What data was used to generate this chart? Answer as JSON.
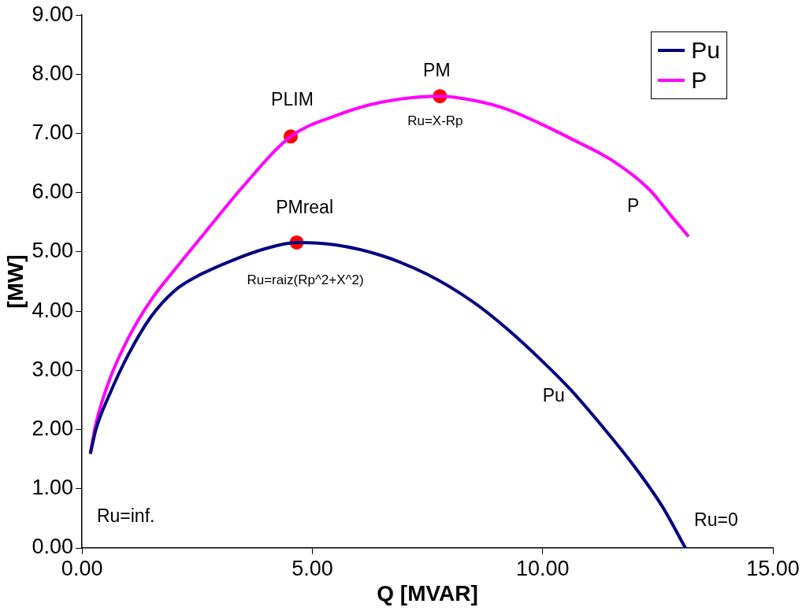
{
  "chart_data": {
    "type": "line",
    "xlabel": "Q [MVAR]",
    "ylabel": "[MW]",
    "xlim": [
      0,
      15
    ],
    "xticks": [
      {
        "value": 0,
        "label": "0.00"
      },
      {
        "value": 5,
        "label": "5.00"
      },
      {
        "value": 10,
        "label": "10.00"
      },
      {
        "value": 15,
        "label": "15.00"
      }
    ],
    "ylim": [
      0,
      9
    ],
    "yticks": [
      {
        "value": 0,
        "label": "0.00"
      },
      {
        "value": 1,
        "label": "1.00"
      },
      {
        "value": 2,
        "label": "2.00"
      },
      {
        "value": 3,
        "label": "3.00"
      },
      {
        "value": 4,
        "label": "4.00"
      },
      {
        "value": 5,
        "label": "5.00"
      },
      {
        "value": 6,
        "label": "6.00"
      },
      {
        "value": 7,
        "label": "7.00"
      },
      {
        "value": 8,
        "label": "8.00"
      },
      {
        "value": 9,
        "label": "9.00"
      }
    ],
    "grid": false,
    "legend": "top right",
    "marker": "none",
    "line_style": "solid",
    "series": [
      {
        "name": "Pu",
        "color": "#000080",
        "x": [
          0.18,
          0.3,
          0.6,
          1.0,
          1.5,
          2.0,
          2.5,
          3.3,
          4.0,
          4.66,
          5.5,
          6.5,
          7.5,
          8.5,
          9.23,
          10.0,
          10.6,
          11.3,
          11.97,
          12.6,
          13.1
        ],
        "values": [
          1.59,
          2.0,
          2.6,
          3.26,
          3.91,
          4.34,
          4.59,
          4.87,
          5.06,
          5.16,
          5.12,
          4.94,
          4.62,
          4.15,
          3.7,
          3.15,
          2.68,
          2.05,
          1.4,
          0.7,
          0
        ]
      },
      {
        "name": "P",
        "color": "#ff00ff",
        "x": [
          0.18,
          0.3,
          0.6,
          1.0,
          1.5,
          2.0,
          2.65,
          3.5,
          4.53,
          5.5,
          6.5,
          7.77,
          8.5,
          9.23,
          10.0,
          10.6,
          11.5,
          12.31,
          12.8,
          13.17
        ],
        "values": [
          1.6,
          2.1,
          2.85,
          3.54,
          4.19,
          4.69,
          5.31,
          6.11,
          6.95,
          7.3,
          7.53,
          7.63,
          7.56,
          7.41,
          7.15,
          6.92,
          6.55,
          6.06,
          5.6,
          5.26
        ]
      },
      {
        "type": "scatter",
        "color": "#ff0000",
        "marker": "circle",
        "x": [
          4.53,
          7.77,
          4.66
        ],
        "values": [
          6.95,
          7.63,
          5.16
        ]
      }
    ],
    "annotations": [
      {
        "text": "PLIM",
        "x": 4.53,
        "y": 6.95
      },
      {
        "text": "PM",
        "x": 7.77,
        "y": 7.63
      },
      {
        "text": "Ru=X-Rp",
        "x": 7.77,
        "y": 7.63
      },
      {
        "text": "PMreal",
        "x": 4.66,
        "y": 5.16
      },
      {
        "text": "Ru=raiz(Rp^2+X^2)",
        "x": 4.66,
        "y": 5.16
      },
      {
        "text": "P",
        "x": 12.31,
        "y": 6.06
      },
      {
        "text": "Pu",
        "x": 10.6,
        "y": 2.68
      },
      {
        "text": "Ru=inf.",
        "x": 0.18,
        "y": 1.6
      },
      {
        "text": "Ru=0",
        "x": 13.1,
        "y": 0
      }
    ]
  }
}
